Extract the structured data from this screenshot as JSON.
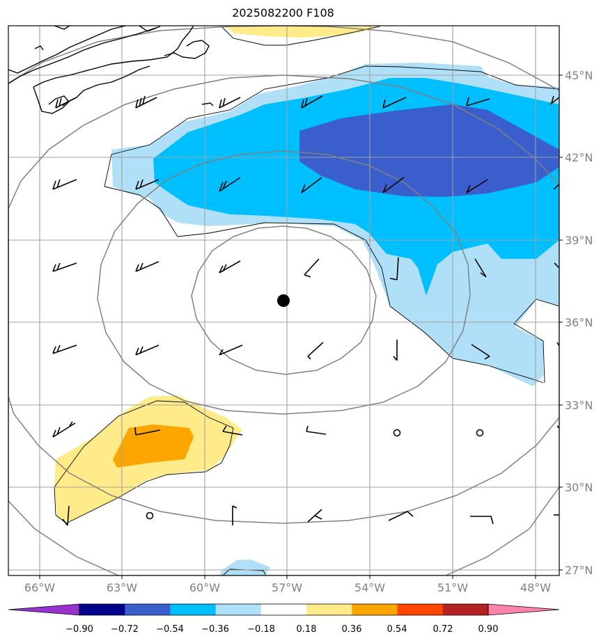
{
  "title": "2025082200 F108",
  "lon_labels": [
    "66°W",
    "63°W",
    "60°W",
    "57°W",
    "54°W",
    "51°W",
    "48°W"
  ],
  "lat_labels": [
    "45°N",
    "42°N",
    "39°N",
    "36°N",
    "33°N",
    "30°N",
    "27°N"
  ],
  "colorbar": {
    "labels": [
      "−0.90",
      "−0.72",
      "−0.54",
      "−0.36",
      "−0.18",
      "0.18",
      "0.36",
      "0.54",
      "0.72",
      "0.90"
    ],
    "colors": [
      "#9932cc",
      "#00008b",
      "#3a5fcd",
      "#00bfff",
      "#b0e0f8",
      "#ffffff",
      "#ffeb8a",
      "#ffa500",
      "#ff4500",
      "#b22222",
      "#ff82ab"
    ]
  },
  "storm_center": {
    "lon": "57°W",
    "lat": "36.8°N"
  },
  "colors": {
    "grid": "#a0a0a0",
    "rings": "#808080",
    "coast": "#000000"
  }
}
